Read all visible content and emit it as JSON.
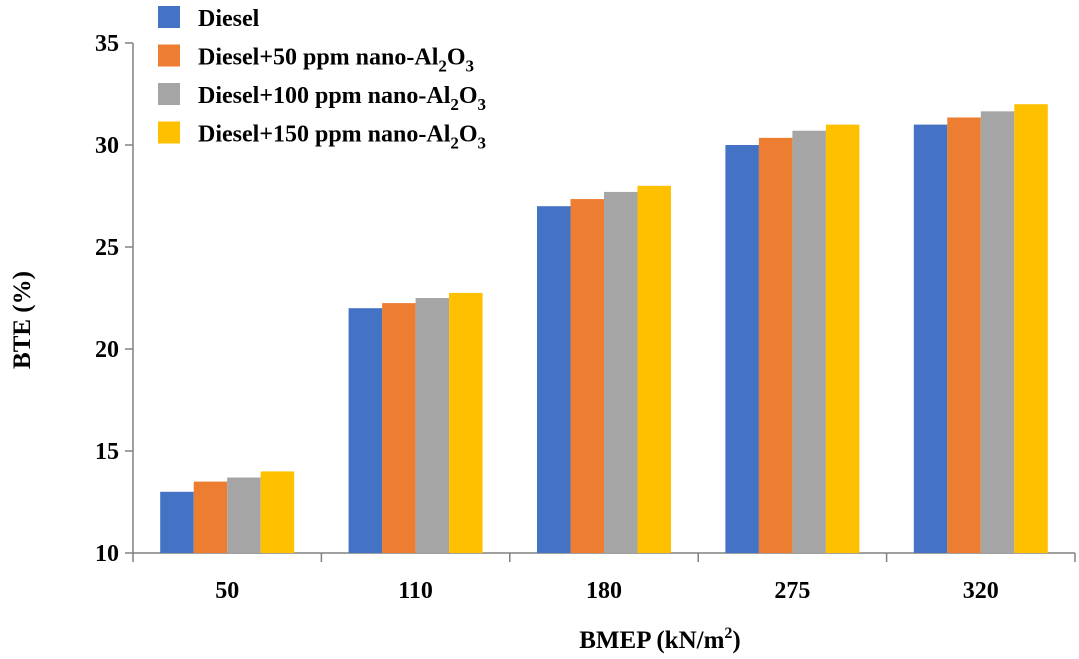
{
  "chart_data": {
    "type": "bar",
    "title": "",
    "xlabel_main": "BMEP (kN/m",
    "xlabel_sup": "2",
    "xlabel_end": ")",
    "ylabel": "BTE (%)",
    "ylim": [
      10,
      35
    ],
    "yticks": [
      "10",
      "15",
      "20",
      "25",
      "30",
      "35"
    ],
    "categories": [
      "50",
      "110",
      "180",
      "275",
      "320"
    ],
    "legend_position": "top-left",
    "series": [
      {
        "name": "Diesel",
        "color": "#4472C4",
        "values": [
          13,
          22,
          27,
          30,
          31
        ]
      },
      {
        "name": "Diesel+50 ppm nano-Al2O3",
        "color": "#ED7D31",
        "values": [
          13.5,
          22.25,
          27.35,
          30.35,
          31.35
        ]
      },
      {
        "name": "Diesel+100 ppm nano-Al2O3",
        "color": "#A5A5A5",
        "values": [
          13.7,
          22.5,
          27.7,
          30.7,
          31.65
        ]
      },
      {
        "name": "Diesel+150 ppm nano-Al2O3",
        "color": "#FFC000",
        "values": [
          14,
          22.75,
          28,
          31,
          32
        ]
      }
    ],
    "legend": [
      {
        "prefix": "Diesel",
        "sub1": "",
        "mid": "",
        "sub2": ""
      },
      {
        "prefix": "Diesel+50 ppm nano-Al",
        "sub1": "2",
        "mid": "O",
        "sub2": "3"
      },
      {
        "prefix": "Diesel+100 ppm nano-Al",
        "sub1": "2",
        "mid": "O",
        "sub2": "3"
      },
      {
        "prefix": "Diesel+150 ppm nano-Al",
        "sub1": "2",
        "mid": "O",
        "sub2": "3"
      }
    ]
  }
}
